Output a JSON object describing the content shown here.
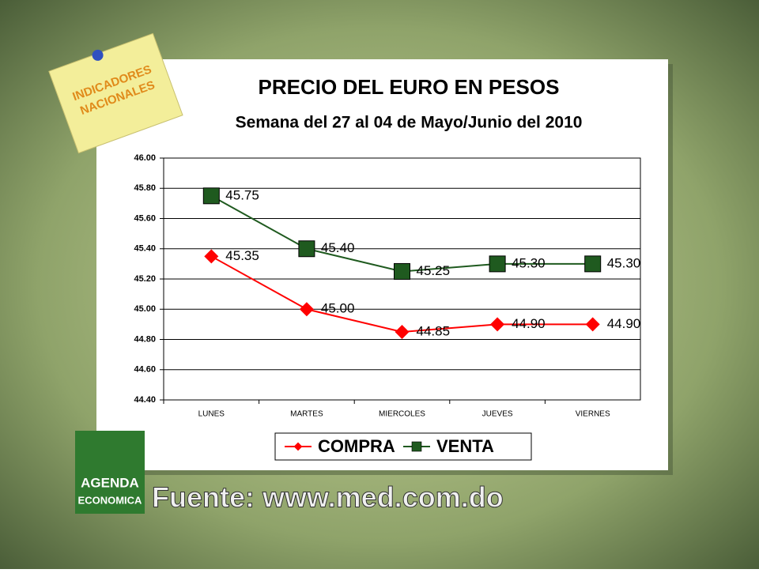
{
  "note": [
    "INDICADORES",
    "NACIONALES"
  ],
  "logo": [
    "AGENDA",
    "ECONOMICA"
  ],
  "source": "Fuente: www.med.com.do",
  "chart_data": {
    "type": "line",
    "title": "PRECIO DEL EURO EN PESOS",
    "subtitle": "Semana del 27 al 04 de Mayo/Junio del 2010",
    "categories": [
      "LUNES",
      "MARTES",
      "MIERCOLES",
      "JUEVES",
      "VIERNES"
    ],
    "series": [
      {
        "name": "COMPRA",
        "color": "#ff0000",
        "marker": "diamond",
        "values": [
          45.35,
          45.0,
          44.85,
          44.9,
          44.9
        ],
        "value_labels": [
          "45.35",
          "45.00",
          "44.85",
          "44.90",
          "44.90"
        ]
      },
      {
        "name": "VENTA",
        "color": "#1f5a1f",
        "marker": "square",
        "values": [
          45.75,
          45.4,
          45.25,
          45.3,
          45.3
        ],
        "value_labels": [
          "45.75",
          "45.40",
          "45.25",
          "45.30",
          "45.30"
        ]
      }
    ],
    "ylim": [
      44.4,
      46.0
    ],
    "yticks": [
      {
        "value": 44.4,
        "label": "44.40"
      },
      {
        "value": 44.6,
        "label": "44.60"
      },
      {
        "value": 44.8,
        "label": "44.80"
      },
      {
        "value": 45.0,
        "label": "45.00"
      },
      {
        "value": 45.2,
        "label": "45.20"
      },
      {
        "value": 45.4,
        "label": "45.40"
      },
      {
        "value": 45.6,
        "label": "45.60"
      },
      {
        "value": 45.8,
        "label": "45.80"
      },
      {
        "value": 46.0,
        "label": "46.00"
      }
    ],
    "grid": true,
    "legend": "bottom"
  }
}
